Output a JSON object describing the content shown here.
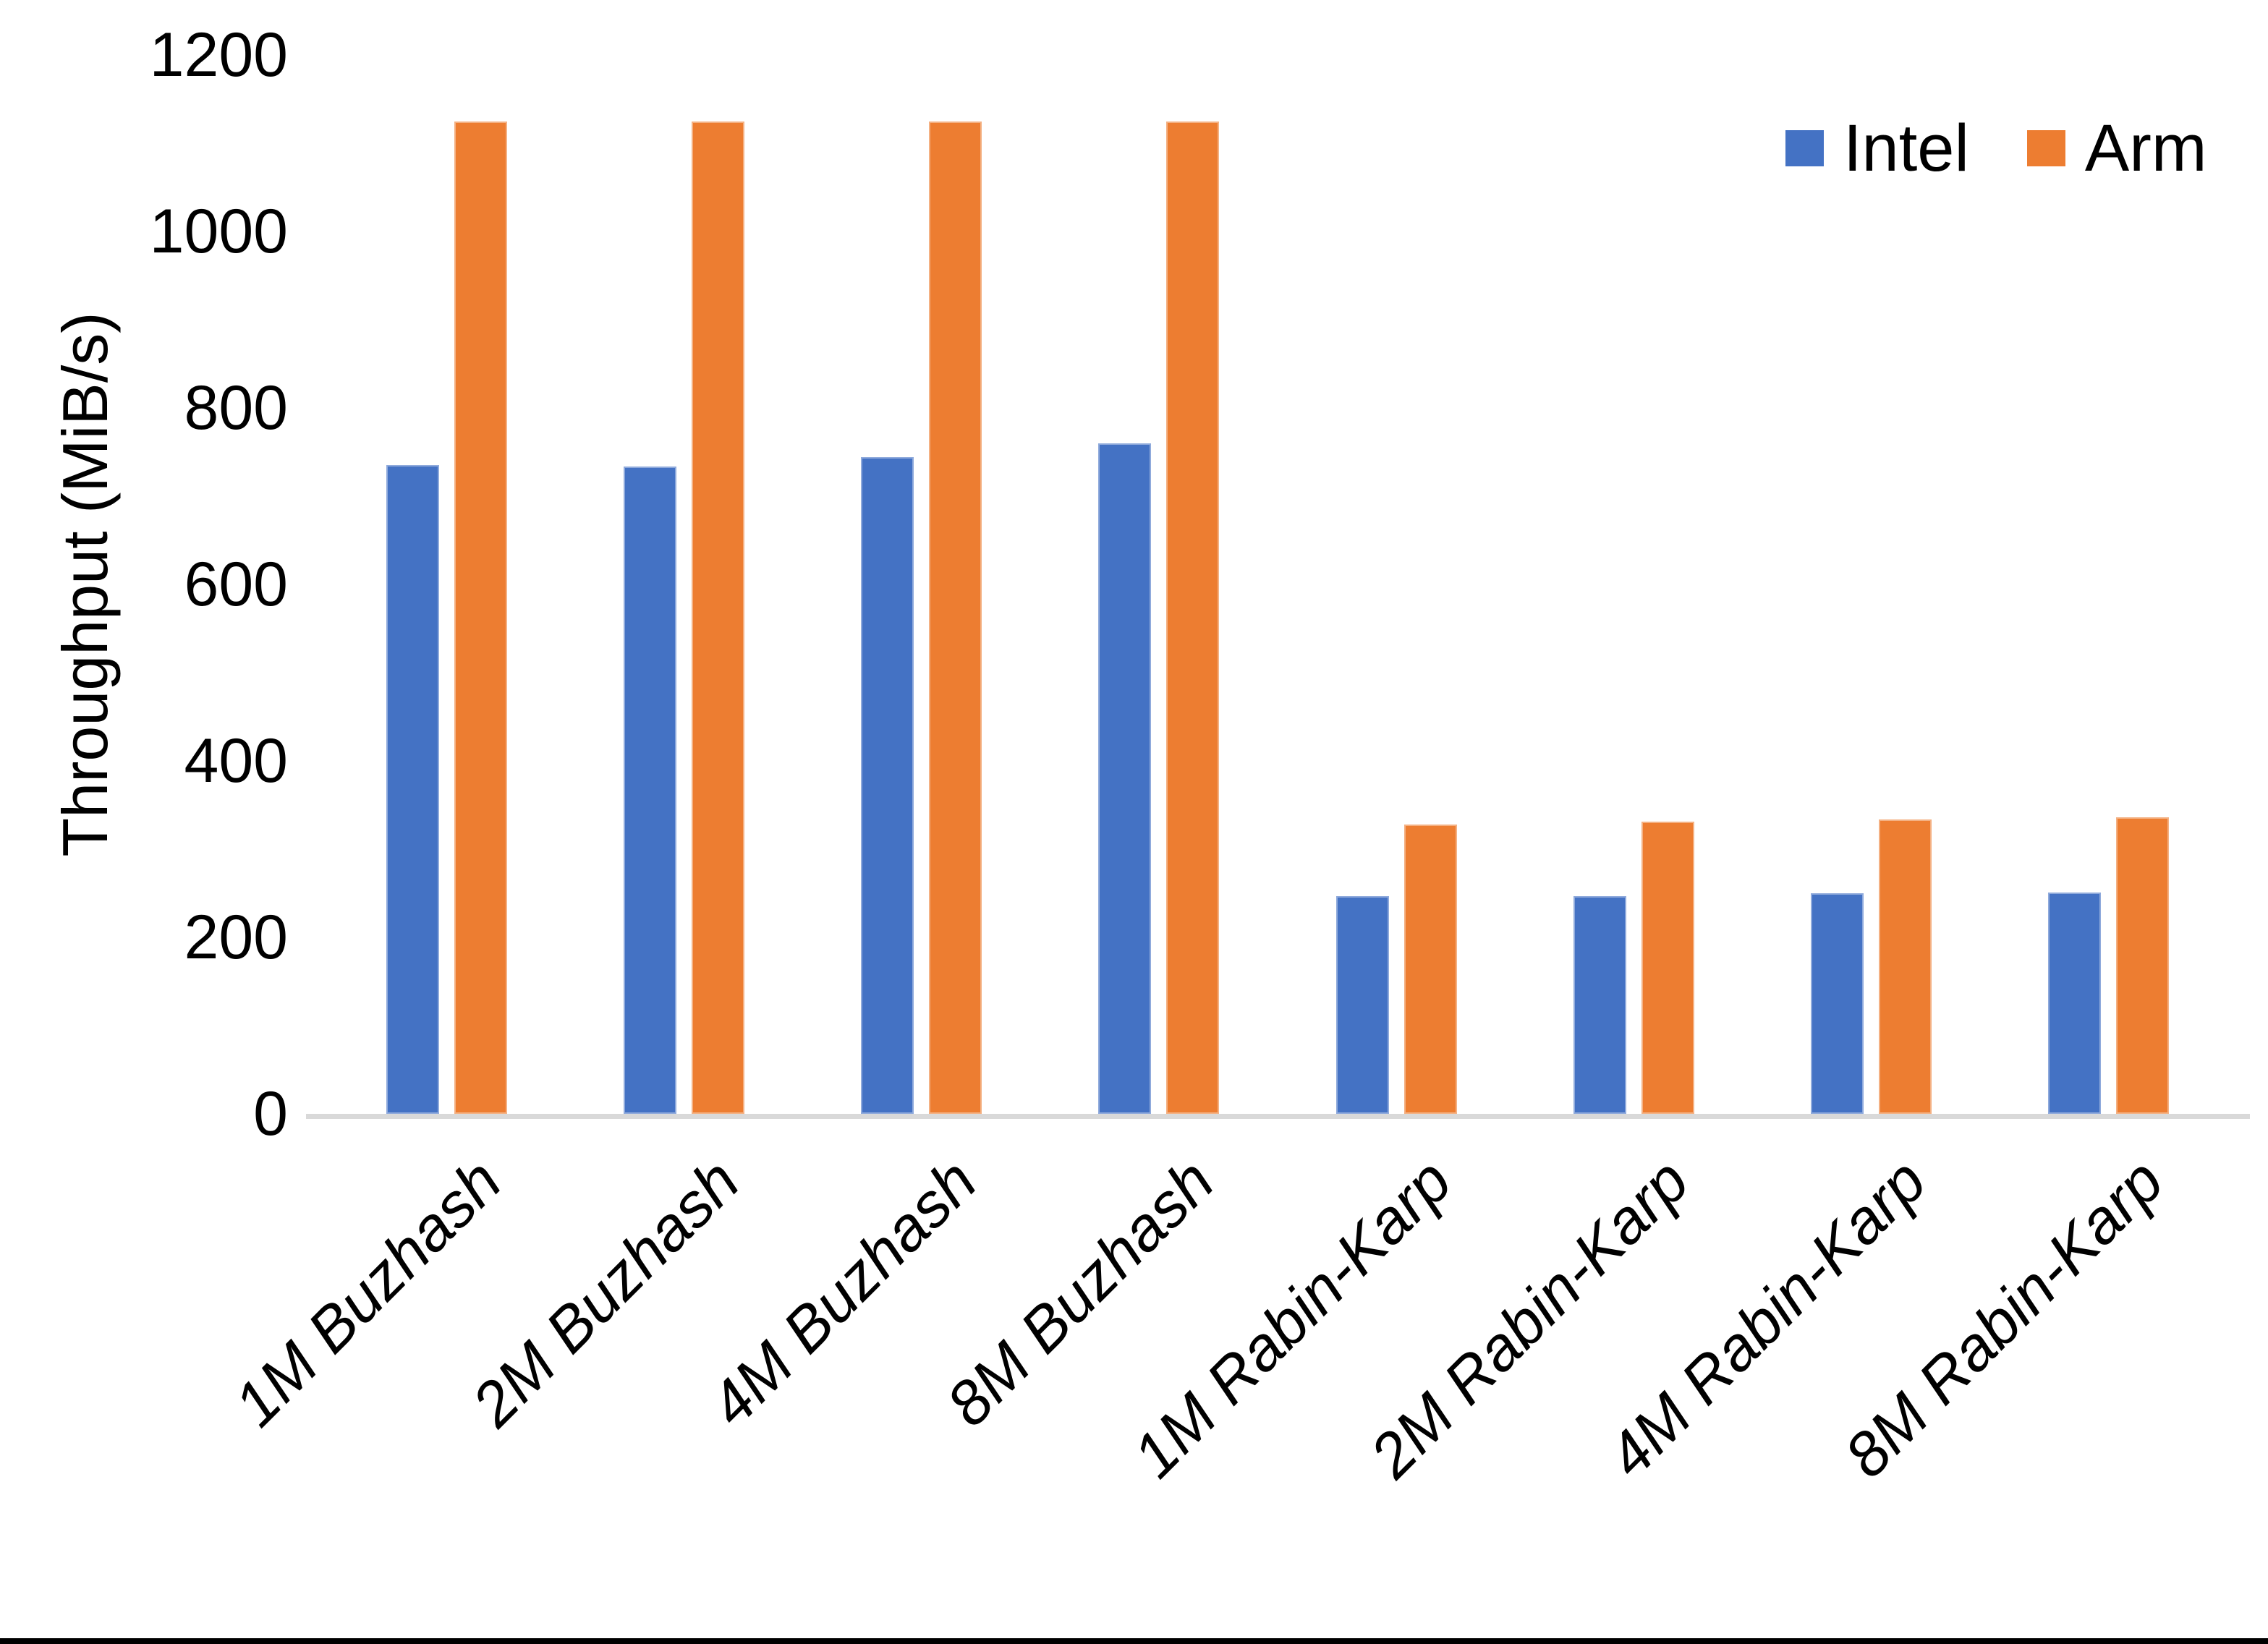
{
  "chart_data": {
    "type": "bar",
    "title": "",
    "xlabel": "",
    "ylabel": "Throughput (MiB/s)",
    "ylim": [
      0,
      1200
    ],
    "yticks": [
      0,
      200,
      400,
      600,
      800,
      1000,
      1200
    ],
    "grid": false,
    "legend_position": "top-right",
    "categories": [
      "1M Buzhash",
      "2M Buzhash",
      "4M Buzhash",
      "8M Buzhash",
      "1M Rabin-Karp",
      "2M Rabin-Karp",
      "4M Rabin-Karp",
      "8M Rabin-Karp"
    ],
    "series": [
      {
        "name": "Intel",
        "color": "#4472C4",
        "border_color": "#8FAADC",
        "values": [
          735,
          734,
          744,
          760,
          247,
          247,
          250,
          251
        ]
      },
      {
        "name": "Arm",
        "color": "#ED7D31",
        "border_color": "#F4B183",
        "values": [
          1125,
          1125,
          1125,
          1125,
          328,
          331,
          334,
          336
        ]
      }
    ]
  },
  "colors": {
    "background": "#FFFFFF",
    "axis_line": "#D9D9D9",
    "text": "#000000",
    "bottom_border": "#000000"
  }
}
